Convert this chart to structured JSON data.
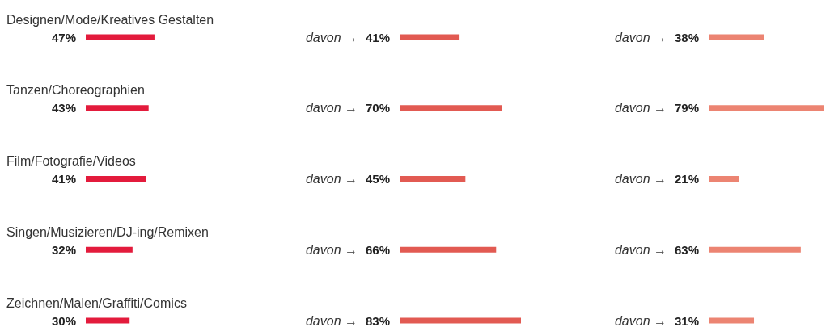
{
  "chart_data": [
    {
      "type": "bar",
      "orientation": "horizontal",
      "categories": [
        "Designen/Mode/Kreatives Gestalten",
        "Tanzen/Choreographien",
        "Film/Fotografie/Videos",
        "Singen/Musizieren/DJ-ing/Remixen",
        "Zeichnen/Malen/Graffiti/Comics"
      ],
      "values": [
        47,
        43,
        41,
        32,
        30
      ],
      "value_labels": [
        "47%",
        "43%",
        "41%",
        "32%",
        "30%"
      ],
      "color": "#e31b3c"
    },
    {
      "type": "bar",
      "orientation": "horizontal",
      "categories": [
        "davon →",
        "davon →",
        "davon →",
        "davon →",
        "davon →"
      ],
      "values": [
        41,
        70,
        45,
        66,
        83
      ],
      "value_labels": [
        "41%",
        "70%",
        "45%",
        "66%",
        "83%"
      ],
      "color": "#e25a52"
    },
    {
      "type": "bar",
      "orientation": "horizontal",
      "categories": [
        "davon →",
        "davon →",
        "davon →",
        "davon →",
        "davon →"
      ],
      "values": [
        38,
        79,
        21,
        63,
        31
      ],
      "value_labels": [
        "38%",
        "79%",
        "21%",
        "63%",
        "31%"
      ],
      "color": "#ec8472"
    }
  ]
}
